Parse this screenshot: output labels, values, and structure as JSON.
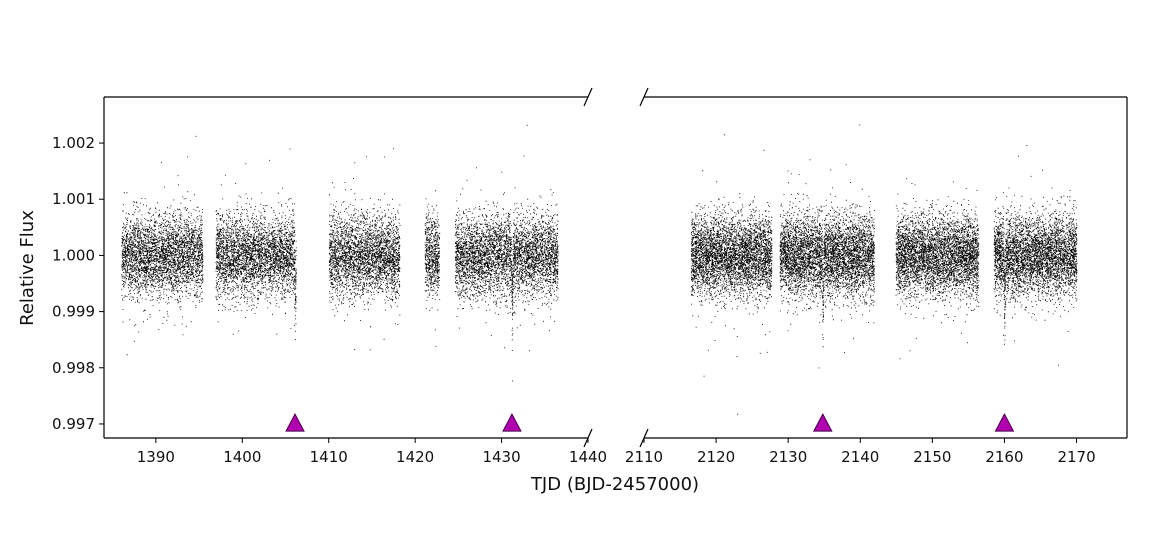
{
  "chart_data": {
    "type": "scatter",
    "title": "",
    "xlabel": "TJD (BJD-2457000)",
    "ylabel": "Relative Flux",
    "grid": false,
    "broken_x_axis": true,
    "panels": [
      {
        "xlim": [
          1384,
          1440
        ],
        "xticks": [
          1390,
          1400,
          1410,
          1420,
          1430,
          1440
        ],
        "data_segments": [
          [
            1386.0,
            1395.4
          ],
          [
            1396.9,
            1406.2
          ],
          [
            1410.0,
            1418.2
          ],
          [
            1421.1,
            1422.8
          ],
          [
            1424.6,
            1436.5
          ]
        ],
        "transits": [
          1406.1,
          1431.2
        ]
      },
      {
        "xlim": [
          2110,
          2177
        ],
        "xticks": [
          2110,
          2120,
          2130,
          2140,
          2150,
          2160,
          2170
        ],
        "data_segments": [
          [
            2116.5,
            2127.7
          ],
          [
            2128.8,
            2141.9
          ],
          [
            2144.9,
            2156.4
          ],
          [
            2158.5,
            2170.0
          ]
        ],
        "transits": [
          2134.8,
          2160.0
        ]
      }
    ],
    "ylim": [
      0.99675,
      1.00282
    ],
    "yticks": [
      0.997,
      0.998,
      0.999,
      1.0,
      1.001,
      1.002
    ],
    "ytick_labels": [
      "0.997",
      "0.998",
      "0.999",
      "1.000",
      "1.001",
      "1.002"
    ],
    "flux_center": 1.0,
    "flux_scatter_sigma": 0.00035,
    "transit_marker_flux": 0.997,
    "point_color": "#000000",
    "marker_color": "#b000b0",
    "marker_edge_color": "#4a004a"
  }
}
